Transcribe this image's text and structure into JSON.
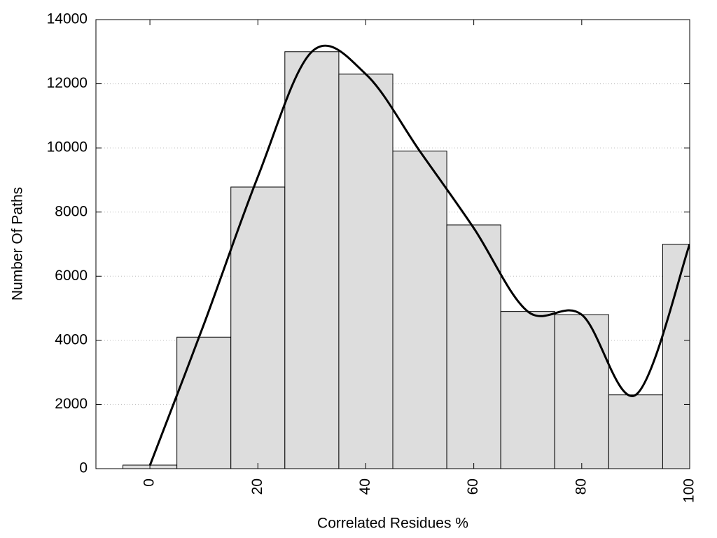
{
  "chart_data": {
    "type": "histogram",
    "xlabel": "Correlated Residues %",
    "ylabel": "Number Of Paths",
    "bins": [
      -5,
      5,
      15,
      25,
      35,
      45,
      55,
      65,
      75,
      85,
      95,
      105
    ],
    "values": [
      110,
      4100,
      8780,
      13000,
      12300,
      9900,
      7600,
      4900,
      4800,
      2300,
      7000
    ],
    "color": "#dddddd",
    "curve": {
      "x": [
        0,
        10,
        20,
        30,
        40,
        50,
        60,
        70,
        80,
        90,
        100
      ],
      "values": [
        100,
        4500,
        9100,
        13000,
        12300,
        9900,
        7500,
        4900,
        4800,
        2300,
        7000
      ],
      "color": "#000000"
    },
    "xlim": [
      -10,
      100
    ],
    "ylim": [
      0,
      14000
    ],
    "xticks": [
      0,
      20,
      40,
      60,
      80,
      100
    ],
    "yticks": [
      0,
      2000,
      4000,
      6000,
      8000,
      10000,
      12000,
      14000
    ],
    "grid": true
  }
}
